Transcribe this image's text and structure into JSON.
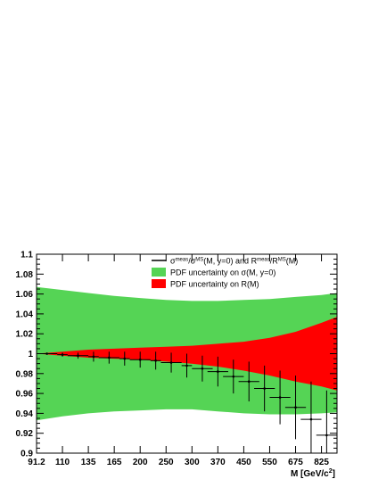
{
  "chart_data": {
    "type": "line",
    "xlabel": "M [GeV/c",
    "xlabel_sup": "2",
    "xlabel_close": "]",
    "ylabel": "",
    "ylim": [
      0.9,
      1.1
    ],
    "y_ticks": [
      0.9,
      0.92,
      0.94,
      0.96,
      0.98,
      1,
      1.02,
      1.04,
      1.06,
      1.08,
      1.1
    ],
    "x_tick_labels": [
      "91.2",
      "110",
      "135",
      "165",
      "200",
      "250",
      "300",
      "370",
      "450",
      "550",
      "675",
      "825"
    ],
    "x_tick_positions": [
      0,
      1.25,
      2.5,
      3.75,
      5,
      6.25,
      7.5,
      8.75,
      10,
      11.25,
      12.5,
      13.75
    ],
    "x_range": [
      0,
      14.5
    ],
    "grid": false,
    "legend_position": "top-right",
    "legend": [
      {
        "kind": "line",
        "parts": [
          {
            "t": "σ",
            "s": "normal"
          },
          {
            "t": "meas",
            "s": "sup"
          },
          {
            "t": "/σ",
            "s": "normal"
          },
          {
            "t": "MS",
            "s": "sup"
          },
          {
            "t": "(M, y=0)   and   R",
            "s": "normal"
          },
          {
            "t": "meas",
            "s": "sup"
          },
          {
            "t": "/R",
            "s": "normal"
          },
          {
            "t": "MS",
            "s": "sup"
          },
          {
            "t": "(M)",
            "s": "normal"
          }
        ]
      },
      {
        "kind": "box",
        "color": "#55d455",
        "parts": [
          {
            "t": "PDF uncertainty on σ(M, y=0)",
            "s": "normal"
          }
        ]
      },
      {
        "kind": "box",
        "color": "#ff0000",
        "parts": [
          {
            "t": "PDF uncertainty on R(M)",
            "s": "normal"
          }
        ]
      }
    ],
    "bands": [
      {
        "name": "PDF uncertainty on σ(M, y=0)",
        "color": "#55d455",
        "x": [
          0,
          1.25,
          2.5,
          3.75,
          5,
          6.25,
          7.5,
          8.75,
          10,
          11.25,
          12.5,
          13.75,
          14.5
        ],
        "upper": [
          1.067,
          1.064,
          1.061,
          1.058,
          1.056,
          1.054,
          1.053,
          1.053,
          1.054,
          1.055,
          1.057,
          1.059,
          1.061
        ],
        "lower": [
          0.933,
          0.937,
          0.94,
          0.942,
          0.943,
          0.944,
          0.944,
          0.942,
          0.94,
          0.939,
          0.939,
          0.94,
          0.941
        ]
      },
      {
        "name": "PDF uncertainty on R(M)",
        "color": "#ff0000",
        "x": [
          0,
          1.25,
          2.5,
          3.75,
          5,
          6.25,
          7.5,
          8.75,
          10,
          11.25,
          12.5,
          13.75,
          14.5
        ],
        "upper": [
          1.0,
          1.002,
          1.004,
          1.005,
          1.006,
          1.007,
          1.008,
          1.01,
          1.012,
          1.016,
          1.022,
          1.031,
          1.037
        ],
        "lower": [
          1.0,
          0.998,
          0.996,
          0.995,
          0.994,
          0.992,
          0.99,
          0.987,
          0.983,
          0.978,
          0.972,
          0.967,
          0.963
        ]
      }
    ],
    "series": [
      {
        "name": "σmeas/σMS(M, y=0)  and  Rmeas/RMS(M)",
        "color": "#000000",
        "points": [
          {
            "x": 0.5,
            "xerr": 0.5,
            "y": 1.0,
            "yerr": 0.001
          },
          {
            "x": 1.25,
            "xerr": 0.25,
            "y": 0.999,
            "yerr": 0.002
          },
          {
            "x": 2.0,
            "xerr": 0.5,
            "y": 0.998,
            "yerr": 0.003
          },
          {
            "x": 2.75,
            "xerr": 0.25,
            "y": 0.997,
            "yerr": 0.005
          },
          {
            "x": 3.5,
            "xerr": 0.5,
            "y": 0.996,
            "yerr": 0.006
          },
          {
            "x": 4.25,
            "xerr": 0.25,
            "y": 0.995,
            "yerr": 0.007
          },
          {
            "x": 5.0,
            "xerr": 0.5,
            "y": 0.994,
            "yerr": 0.008
          },
          {
            "x": 5.75,
            "xerr": 0.25,
            "y": 0.993,
            "yerr": 0.009
          },
          {
            "x": 6.5,
            "xerr": 0.5,
            "y": 0.991,
            "yerr": 0.01
          },
          {
            "x": 7.25,
            "xerr": 0.25,
            "y": 0.988,
            "yerr": 0.012
          },
          {
            "x": 8.0,
            "xerr": 0.5,
            "y": 0.985,
            "yerr": 0.013
          },
          {
            "x": 8.75,
            "xerr": 0.5,
            "y": 0.982,
            "yerr": 0.015
          },
          {
            "x": 9.5,
            "xerr": 0.5,
            "y": 0.977,
            "yerr": 0.017
          },
          {
            "x": 10.25,
            "xerr": 0.5,
            "y": 0.972,
            "yerr": 0.02
          },
          {
            "x": 11.0,
            "xerr": 0.5,
            "y": 0.965,
            "yerr": 0.023
          },
          {
            "x": 11.75,
            "xerr": 0.5,
            "y": 0.956,
            "yerr": 0.027
          },
          {
            "x": 12.5,
            "xerr": 0.5,
            "y": 0.946,
            "yerr": 0.032
          },
          {
            "x": 13.25,
            "xerr": 0.5,
            "y": 0.934,
            "yerr": 0.038
          },
          {
            "x": 14.0,
            "xerr": 0.5,
            "y": 0.918,
            "yerr": 0.045
          }
        ]
      }
    ]
  }
}
